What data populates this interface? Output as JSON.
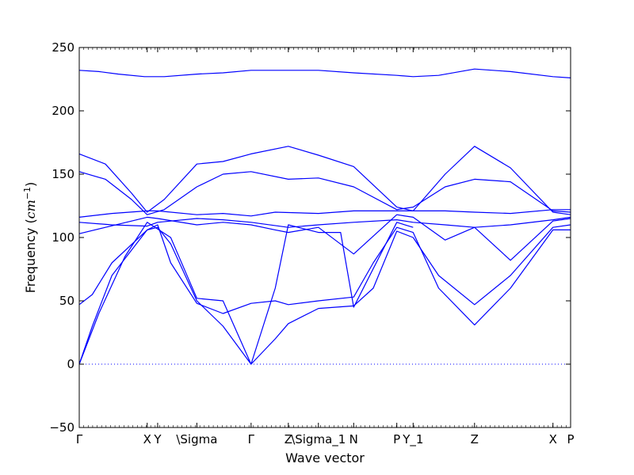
{
  "chart_data": {
    "type": "line",
    "title": "",
    "xlabel": "Wave vector",
    "ylabel_text": "Frequency (",
    "ylabel_unit_base": "cm",
    "ylabel_unit_exp": "−1",
    "ylabel_close": ")",
    "ylim": [
      -50,
      250
    ],
    "y_ticks": [
      -50,
      0,
      50,
      100,
      150,
      200,
      250
    ],
    "y_tick_labels": [
      "−50",
      "0",
      "50",
      "100",
      "150",
      "200",
      "250"
    ],
    "grid": false,
    "line_color": "#0000ff",
    "zero_line": {
      "value": 0,
      "style": "dotted",
      "color": "#0000ff"
    },
    "xlim": [
      0,
      7.52
    ],
    "x_ticks": [
      {
        "pos": 0.0,
        "label": "Γ"
      },
      {
        "pos": 1.04,
        "label": "X"
      },
      {
        "pos": 1.2,
        "label": "Y"
      },
      {
        "pos": 1.8,
        "label": "\\Sigma"
      },
      {
        "pos": 2.63,
        "label": "Γ"
      },
      {
        "pos": 3.2,
        "label": "Z"
      },
      {
        "pos": 3.66,
        "label": "\\Sigma_1"
      },
      {
        "pos": 4.2,
        "label": "N"
      },
      {
        "pos": 4.86,
        "label": "P"
      },
      {
        "pos": 5.11,
        "label": "Y_1"
      },
      {
        "pos": 6.05,
        "label": "Z"
      },
      {
        "pos": 7.25,
        "label": "X"
      },
      {
        "pos": 7.52,
        "label": "P"
      }
    ],
    "series": [
      {
        "x": [
          0.0,
          0.3,
          0.6,
          1.0,
          1.3,
          1.8,
          2.2,
          2.63,
          3.0,
          3.66,
          4.2,
          4.86,
          5.11,
          5.5,
          6.05,
          6.6,
          7.25,
          7.52
        ],
        "values": [
          232,
          231,
          229,
          227,
          227,
          229,
          230,
          232,
          232,
          232,
          230,
          228,
          227,
          228,
          233,
          231,
          227,
          226
        ]
      },
      {
        "x": [
          0.0,
          0.4,
          0.8,
          1.04,
          1.3,
          1.8,
          2.2,
          2.63,
          3.2,
          3.66,
          4.2,
          4.86,
          5.11,
          5.6,
          6.05,
          6.6,
          7.25,
          7.52
        ],
        "values": [
          166,
          158,
          135,
          120,
          130,
          158,
          160,
          166,
          172,
          165,
          156,
          124,
          121,
          150,
          172,
          155,
          120,
          118
        ]
      },
      {
        "x": [
          0.0,
          0.4,
          0.8,
          1.04,
          1.3,
          1.8,
          2.2,
          2.63,
          3.2,
          3.66,
          4.2,
          4.86,
          5.11,
          5.6,
          6.05,
          6.6,
          7.25,
          7.52
        ],
        "values": [
          152,
          146,
          130,
          118,
          122,
          140,
          150,
          152,
          146,
          147,
          140,
          122,
          124,
          140,
          146,
          144,
          121,
          120
        ]
      },
      {
        "x": [
          0.0,
          0.5,
          1.04,
          1.2,
          1.8,
          2.2,
          2.63,
          3.0,
          3.66,
          4.2,
          4.86,
          5.11,
          5.6,
          6.05,
          6.6,
          7.25,
          7.52
        ],
        "values": [
          116,
          119,
          121,
          121,
          118,
          119,
          117,
          120,
          119,
          121,
          121,
          121,
          121,
          120,
          119,
          122,
          122
        ]
      },
      {
        "x": [
          0.0,
          0.5,
          1.04,
          1.2,
          1.8,
          2.2,
          2.63,
          3.2,
          3.66,
          4.2,
          4.86,
          5.11,
          5.6,
          6.05,
          6.6,
          7.25,
          7.52
        ],
        "values": [
          112,
          110,
          109,
          112,
          115,
          114,
          112,
          108,
          110,
          112,
          114,
          112,
          110,
          108,
          110,
          114,
          116
        ]
      },
      {
        "x": [
          0.0,
          0.4,
          1.04,
          1.2,
          1.8,
          2.2,
          2.63,
          3.0,
          3.2,
          3.66,
          4.2,
          4.86,
          5.11,
          5.6,
          6.05,
          6.6,
          7.25,
          7.52
        ],
        "values": [
          103,
          108,
          116,
          115,
          110,
          112,
          110,
          106,
          104,
          108,
          87,
          118,
          116,
          98,
          108,
          82,
          113,
          115
        ]
      },
      {
        "x": [
          0.0,
          0.2,
          0.5,
          1.04,
          1.2,
          1.4,
          1.8,
          2.2,
          2.63,
          3.0,
          3.2,
          3.66,
          4.2,
          4.5,
          4.86,
          5.11,
          5.5,
          6.05,
          6.6,
          7.25,
          7.52
        ],
        "values": [
          0,
          30,
          70,
          106,
          108,
          95,
          50,
          30,
          0,
          20,
          32,
          44,
          46,
          60,
          105,
          100,
          70,
          47,
          70,
          108,
          110
        ]
      },
      {
        "x": [
          0.0,
          0.2,
          0.5,
          1.04,
          1.2,
          1.4,
          1.8,
          2.2,
          2.63,
          3.0,
          3.2,
          3.66,
          4.2,
          4.5,
          4.86,
          5.11,
          5.5,
          6.05,
          6.6,
          7.25,
          7.52
        ],
        "values": [
          47,
          55,
          80,
          106,
          110,
          80,
          48,
          40,
          48,
          50,
          47,
          50,
          53,
          80,
          108,
          104,
          60,
          31,
          60,
          106,
          106
        ]
      },
      {
        "x": [
          0.0,
          0.3,
          0.7,
          1.04,
          1.4,
          1.8,
          2.2,
          2.63,
          3.0,
          3.2,
          3.66,
          4.0,
          4.2,
          4.86,
          5.11
        ],
        "values": [
          0,
          40,
          85,
          112,
          100,
          52,
          50,
          0,
          60,
          110,
          104,
          104,
          45,
          112,
          108
        ]
      }
    ]
  }
}
